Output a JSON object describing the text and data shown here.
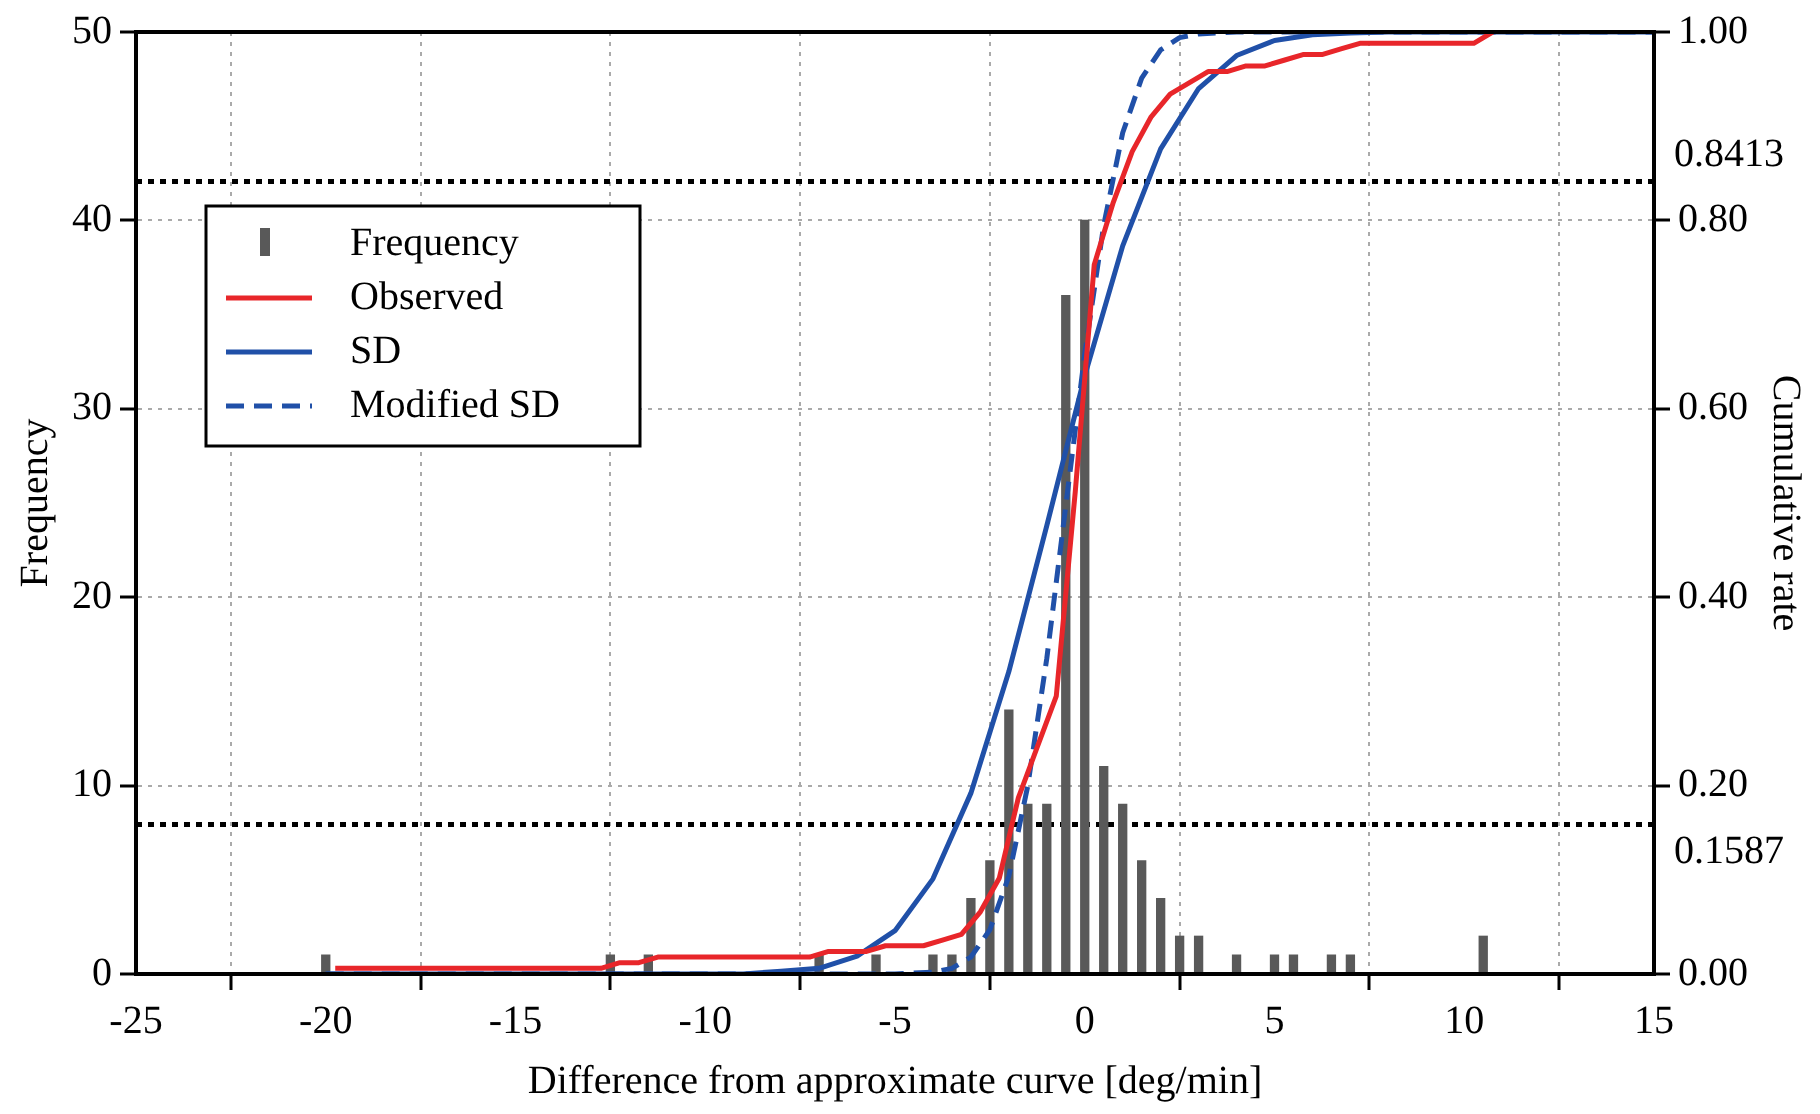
{
  "chart_data": {
    "type": "bar",
    "xlabel": "Difference from approximate curve [deg/min]",
    "ylabel": "Frequency",
    "y2label": "Cumulative rate",
    "xlim": [
      -25,
      15
    ],
    "xticks": [
      -25,
      -20,
      -15,
      -10,
      -5,
      0,
      5,
      10,
      15
    ],
    "ylim": [
      0,
      50
    ],
    "yticks": [
      0,
      10,
      20,
      30,
      40,
      50
    ],
    "y2lim": [
      0,
      1
    ],
    "y2ticks": [
      {
        "value": 0,
        "label": "0.00"
      },
      {
        "value": 0.2,
        "label": "0.20"
      },
      {
        "value": 0.4,
        "label": "0.40"
      },
      {
        "value": 0.6,
        "label": "0.60"
      },
      {
        "value": 0.8,
        "label": "0.80"
      },
      {
        "value": 1,
        "label": "1.00"
      }
    ],
    "grid": true,
    "legend": "top left",
    "marker": "none",
    "ref_lines": [
      {
        "axis": "y2",
        "value": 0.8413,
        "label": "0.8413",
        "color": "#000000",
        "line_style": "dotted"
      },
      {
        "axis": "y2",
        "value": 0.1587,
        "label": "0.1587",
        "color": "#000000",
        "line_style": "dotted"
      }
    ],
    "series": [
      {
        "name": "Frequency",
        "color": "#595959",
        "x": [
          -20,
          -12.5,
          -11.5,
          -7,
          -5.5,
          -4,
          -3.5,
          -3,
          -2.5,
          -2,
          -1.5,
          -1,
          -0.5,
          0,
          0.5,
          1,
          1.5,
          2,
          2.5,
          3,
          4,
          5,
          5.5,
          6.5,
          7,
          10.5
        ],
        "values": [
          1,
          1,
          1,
          1,
          1,
          1,
          1,
          4,
          6,
          14,
          9,
          9,
          36,
          40,
          11,
          9,
          6,
          4,
          2,
          2,
          1,
          1,
          1,
          1,
          1,
          2
        ]
      },
      {
        "name": "Observed",
        "type": "line",
        "axis": "y2",
        "color": "#e8262a",
        "line_style": "solid",
        "x": [
          -19.75,
          -12.75,
          -12.25,
          -11.75,
          -11.25,
          -7.25,
          -6.75,
          -5.75,
          -5.25,
          -4.25,
          -3.75,
          -3.25,
          -2.75,
          -2.25,
          -1.75,
          -1.25,
          -0.75,
          -0.25,
          0.25,
          0.75,
          1.25,
          1.75,
          2.25,
          2.75,
          3.25,
          3.75,
          4.25,
          4.75,
          5.25,
          5.75,
          6.25,
          6.75,
          7.25,
          10.25,
          10.75
        ],
        "values": [
          0.006,
          0.006,
          0.012,
          0.012,
          0.018,
          0.018,
          0.024,
          0.024,
          0.03,
          0.03,
          0.036,
          0.042,
          0.066,
          0.102,
          0.187,
          0.241,
          0.295,
          0.512,
          0.753,
          0.819,
          0.873,
          0.91,
          0.934,
          0.946,
          0.958,
          0.958,
          0.964,
          0.964,
          0.97,
          0.976,
          0.976,
          0.982,
          0.988,
          0.988,
          1
        ]
      },
      {
        "name": "SD",
        "type": "line",
        "axis": "y2",
        "color": "#2050a8",
        "line_style": "solid",
        "x": [
          -20,
          -10,
          -9,
          -8,
          -7,
          -6,
          -5,
          -4,
          -3,
          -2,
          -1,
          0,
          1,
          2,
          3,
          4,
          5,
          6,
          7,
          8,
          15
        ],
        "values": [
          0,
          0,
          0,
          0.003,
          0.006,
          0.019,
          0.046,
          0.101,
          0.192,
          0.321,
          0.476,
          0.635,
          0.773,
          0.876,
          0.94,
          0.975,
          0.991,
          0.997,
          0.999,
          1,
          1
        ]
      },
      {
        "name": "Modified SD",
        "type": "line",
        "axis": "y2",
        "color": "#2050a8",
        "line_style": "dashed",
        "x": [
          -20,
          -6,
          -5,
          -4,
          -3.5,
          -3,
          -2.5,
          -2,
          -1.5,
          -1,
          -0.5,
          0,
          0.5,
          1,
          1.5,
          2,
          2.5,
          3,
          4,
          15
        ],
        "values": [
          0,
          0,
          0,
          0.002,
          0.006,
          0.018,
          0.047,
          0.104,
          0.2,
          0.335,
          0.497,
          0.658,
          0.795,
          0.893,
          0.951,
          0.981,
          0.994,
          0.998,
          1,
          1
        ]
      }
    ]
  }
}
